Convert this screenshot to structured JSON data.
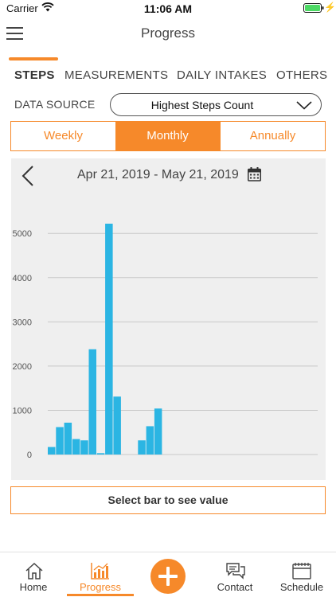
{
  "status_bar": {
    "carrier": "Carrier",
    "time": "11:06 AM",
    "battery_color": "#4cd964"
  },
  "nav": {
    "title": "Progress",
    "menu_icon": "hamburger-menu-icon"
  },
  "tabs": [
    {
      "label": "STEPS",
      "active": true
    },
    {
      "label": "MEASUREMENTS",
      "active": false
    },
    {
      "label": "DAILY INTAKES",
      "active": false
    },
    {
      "label": "OTHERS",
      "active": false
    }
  ],
  "data_source": {
    "label": "DATA SOURCE",
    "value": "Highest Steps Count"
  },
  "period": {
    "options": [
      "Weekly",
      "Monthly",
      "Annually"
    ],
    "selected": "Monthly"
  },
  "date_range": "Apr 21, 2019 - May 21, 2019",
  "chart_data": {
    "type": "bar",
    "title": "",
    "xlabel": "",
    "ylabel": "",
    "ylim": [
      0,
      5400
    ],
    "yticks": [
      0,
      1000,
      2000,
      3000,
      4000,
      5000
    ],
    "grid": true,
    "legend": "none",
    "bar_color": "#2bb5e3",
    "values": [
      170,
      620,
      720,
      350,
      320,
      2380,
      30,
      5220,
      1310,
      0,
      0,
      320,
      640,
      1040,
      0,
      0,
      0,
      0,
      0,
      0,
      0,
      0,
      0,
      0,
      0,
      0,
      0,
      0,
      0,
      0,
      0
    ]
  },
  "select_bar_text": "Select bar to see value",
  "bottom_nav": {
    "items": [
      {
        "label": "Home",
        "icon": "home-icon",
        "active": false
      },
      {
        "label": "Progress",
        "icon": "chart-icon",
        "active": true
      },
      {
        "label": "Contact",
        "icon": "chat-icon",
        "active": false
      },
      {
        "label": "Schedule",
        "icon": "calendar-icon",
        "active": false
      }
    ],
    "add_icon": "plus-icon",
    "accent": "#f6892a"
  }
}
